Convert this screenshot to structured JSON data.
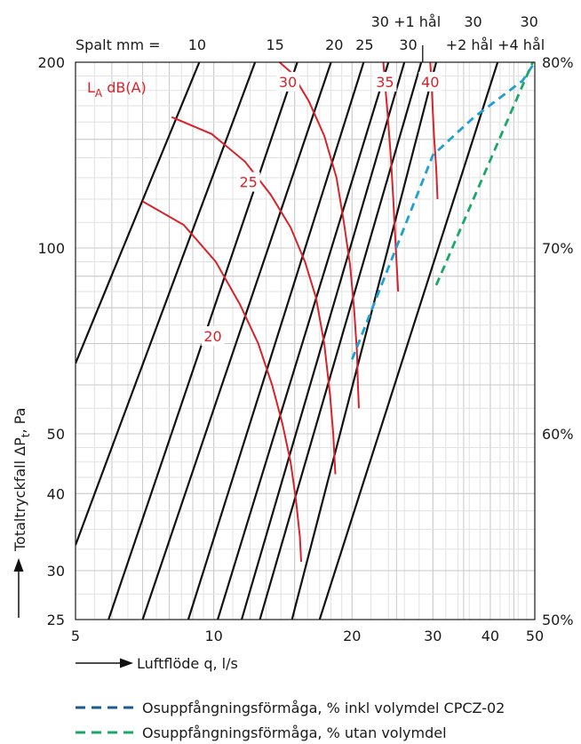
{
  "chart_data": {
    "type": "line",
    "x_axis": {
      "label": "Luftflöde q, l/s",
      "scale": "log",
      "range": [
        5,
        50
      ],
      "tick_labels": [
        "5",
        "10",
        "20",
        "30",
        "40",
        "50"
      ]
    },
    "y_axis": {
      "label_main": "Totaltryckfall ΔP",
      "label_sub": "t",
      "label_unit": ", Pa",
      "scale": "log",
      "range": [
        25,
        200
      ],
      "tick_labels": [
        "25",
        "30",
        "40",
        "50",
        "100",
        "200"
      ]
    },
    "y2_axis": {
      "tick_labels": [
        "50%",
        "60%",
        "70%",
        "80%"
      ],
      "range": [
        50,
        80
      ],
      "scale": "linear"
    },
    "grid": true,
    "spalt": {
      "prefix": "Spalt mm =",
      "labels": [
        {
          "text": "10",
          "x": 9.2,
          "row": 2
        },
        {
          "text": "15",
          "x": 13.6,
          "row": 2
        },
        {
          "text": "20",
          "x": 18.3,
          "row": 2
        },
        {
          "text": "25",
          "x": 21.3,
          "row": 2
        },
        {
          "text": "30",
          "x": 26.5,
          "row": 2
        },
        {
          "text": "30 +1 hål",
          "x": 26.2,
          "row": 1
        },
        {
          "text": "30",
          "x": 36.7,
          "row": 1
        },
        {
          "text": "+2 hål",
          "x": 36.0,
          "row": 2
        },
        {
          "text": "30",
          "x": 48.6,
          "row": 1
        },
        {
          "text": "+4 hål",
          "x": 46.7,
          "row": 2
        }
      ]
    },
    "pressure_lines": [
      {
        "x1": 5.0,
        "y1": 65,
        "x2": 9.3,
        "y2": 200
      },
      {
        "x1": 5.0,
        "y1": 33,
        "x2": 12.3,
        "y2": 200
      },
      {
        "x1": 5.9,
        "y1": 25,
        "x2": 15.2,
        "y2": 200
      },
      {
        "x1": 7.0,
        "y1": 25,
        "x2": 18.0,
        "y2": 200
      },
      {
        "x1": 8.8,
        "y1": 25,
        "x2": 21.2,
        "y2": 200
      },
      {
        "x1": 10.2,
        "y1": 25,
        "x2": 24.0,
        "y2": 200
      },
      {
        "x1": 11.5,
        "y1": 25,
        "x2": 26.0,
        "y2": 200
      },
      {
        "x1": 12.6,
        "y1": 25,
        "x2": 28.3,
        "y2": 200
      },
      {
        "x1": 14.8,
        "y1": 25,
        "x2": 30.5,
        "y2": 200
      },
      {
        "x1": 17.0,
        "y1": 25,
        "x2": 41.5,
        "y2": 200
      }
    ],
    "divider_line": {
      "x": 28.5,
      "y1": 200,
      "y2": 213
    },
    "sound_title": {
      "main": "L",
      "sub": "A",
      "rest": " dB(A)"
    },
    "sound_curves": [
      {
        "label": "20",
        "label_at": [
          9.95,
          72
        ],
        "points": [
          [
            7.0,
            119
          ],
          [
            8.6,
            109
          ],
          [
            10.1,
            95
          ],
          [
            11.4,
            81
          ],
          [
            12.5,
            70
          ],
          [
            13.4,
            60
          ],
          [
            14.1,
            52
          ],
          [
            14.7,
            45
          ],
          [
            15.1,
            39
          ],
          [
            15.4,
            34
          ],
          [
            15.5,
            31
          ]
        ]
      },
      {
        "label": "25",
        "label_at": [
          11.9,
          128
        ],
        "points": [
          [
            8.1,
            163
          ],
          [
            9.9,
            153
          ],
          [
            11.7,
            138
          ],
          [
            13.3,
            122
          ],
          [
            14.7,
            108
          ],
          [
            15.8,
            95
          ],
          [
            16.7,
            83
          ],
          [
            17.4,
            70
          ],
          [
            17.9,
            58
          ],
          [
            18.2,
            50
          ],
          [
            18.4,
            43
          ]
        ]
      },
      {
        "label": "30",
        "label_at": [
          14.5,
          186
        ],
        "points": [
          [
            13.9,
            200
          ],
          [
            14.8,
            192
          ],
          [
            16.1,
            173
          ],
          [
            17.4,
            152
          ],
          [
            18.5,
            130
          ],
          [
            19.2,
            110
          ],
          [
            19.8,
            94
          ],
          [
            20.2,
            80
          ],
          [
            20.5,
            68
          ],
          [
            20.6,
            60
          ],
          [
            20.7,
            55
          ]
        ]
      },
      {
        "label": "35",
        "label_at": [
          23.6,
          186
        ],
        "points": [
          [
            23.4,
            200
          ],
          [
            23.6,
            185
          ],
          [
            23.9,
            165
          ],
          [
            24.3,
            140
          ],
          [
            24.6,
            120
          ],
          [
            24.9,
            100
          ],
          [
            25.2,
            85
          ]
        ]
      },
      {
        "label": "40",
        "label_at": [
          29.6,
          186
        ],
        "points": [
          [
            29.6,
            200
          ],
          [
            29.8,
            185
          ],
          [
            30.0,
            165
          ],
          [
            30.2,
            150
          ],
          [
            30.5,
            135
          ],
          [
            30.7,
            120
          ]
        ]
      }
    ],
    "efficiency_series": [
      {
        "name": "Osuppfångningsförmåga, % inkl volymdel CPCZ-02",
        "color": "#1f9fd6",
        "points": [
          [
            20.0,
            64
          ],
          [
            30.0,
            75
          ],
          [
            36.7,
            77
          ],
          [
            47.0,
            79
          ],
          [
            50,
            80
          ]
        ]
      },
      {
        "name": "Osuppfångningsförmåga, % utan volymdel",
        "color": "#1ba76a",
        "points": [
          [
            30.5,
            68
          ],
          [
            47.5,
            79
          ],
          [
            49.5,
            80
          ]
        ]
      }
    ],
    "legend": {
      "placement": "bottom",
      "items": [
        {
          "text": "Osuppfångningsförmåga, % inkl volymdel CPCZ-02",
          "color": "#1e5a8f"
        },
        {
          "text": "Osuppfångningsförmåga, % utan volymdel",
          "color": "#1ba76a"
        }
      ]
    },
    "colors": {
      "pressure": "#111111",
      "sound": "#d8232a",
      "grid": "#c8c8c8",
      "grid_fine": "#e2e2e2"
    }
  }
}
